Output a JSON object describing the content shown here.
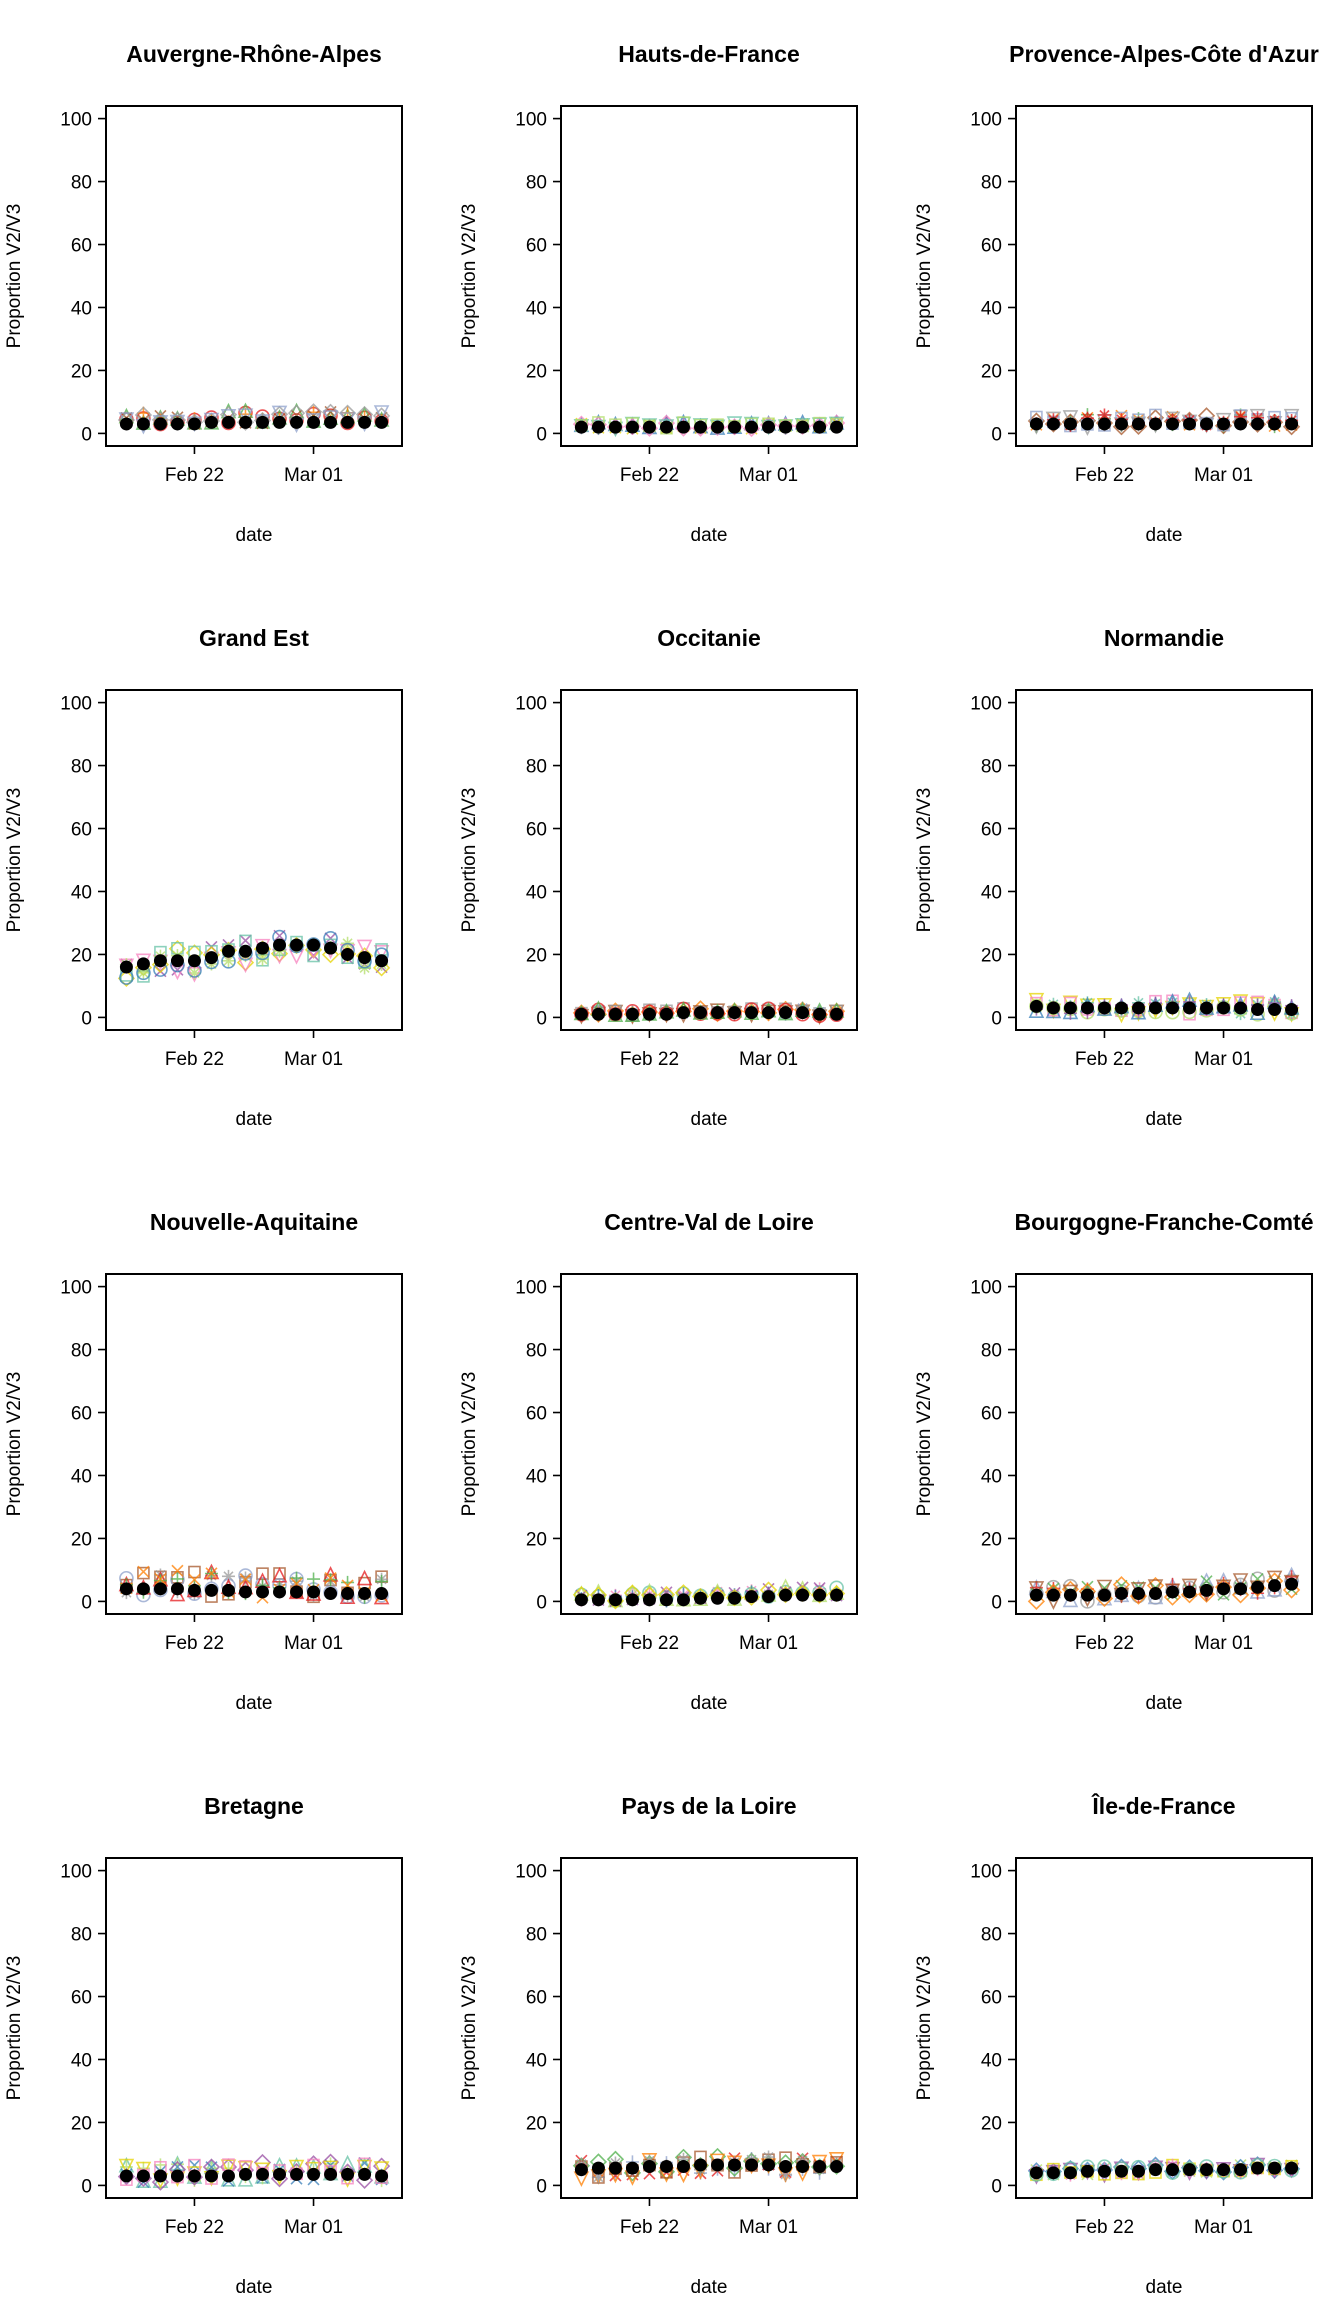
{
  "chart_data": [
    {
      "type": "scatter",
      "title": "Auvergne-Rhône-Alpes",
      "xlabel": "date",
      "ylabel": "Proportion V2/V3",
      "ylim": [
        0,
        100
      ],
      "yticks": [
        0,
        20,
        40,
        60,
        80,
        100
      ],
      "x_tick_labels": [
        "Feb 22",
        "Mar 01"
      ],
      "x": [
        "Feb 18",
        "Feb 19",
        "Feb 20",
        "Feb 21",
        "Feb 22",
        "Feb 23",
        "Feb 24",
        "Feb 25",
        "Feb 26",
        "Feb 27",
        "Feb 28",
        "Mar 01",
        "Mar 02",
        "Mar 03",
        "Mar 04",
        "Mar 05"
      ],
      "mean": [
        3,
        3,
        3,
        3,
        3,
        3.5,
        3.5,
        3.5,
        3.5,
        3.5,
        3.5,
        3.5,
        3.5,
        3.5,
        3.5,
        3.5
      ],
      "spread": [
        0.5,
        3.5
      ]
    },
    {
      "type": "scatter",
      "title": "Hauts-de-France",
      "xlabel": "date",
      "ylabel": "Proportion V2/V3",
      "ylim": [
        0,
        100
      ],
      "yticks": [
        0,
        20,
        40,
        60,
        80,
        100
      ],
      "x_tick_labels": [
        "Feb 22",
        "Mar 01"
      ],
      "x": [
        "Feb 18",
        "Feb 19",
        "Feb 20",
        "Feb 21",
        "Feb 22",
        "Feb 23",
        "Feb 24",
        "Feb 25",
        "Feb 26",
        "Feb 27",
        "Feb 28",
        "Mar 01",
        "Mar 02",
        "Mar 03",
        "Mar 04",
        "Mar 05"
      ],
      "mean": [
        2,
        2,
        2,
        2,
        2,
        2,
        2,
        2,
        2,
        2,
        2,
        2,
        2,
        2,
        2,
        2
      ],
      "spread": [
        0.5,
        1.5
      ]
    },
    {
      "type": "scatter",
      "title": "Provence-Alpes-Côte d'Azur",
      "xlabel": "date",
      "ylabel": "Proportion V2/V3",
      "ylim": [
        0,
        100
      ],
      "yticks": [
        0,
        20,
        40,
        60,
        80,
        100
      ],
      "x_tick_labels": [
        "Feb 22",
        "Mar 01"
      ],
      "x": [
        "Feb 18",
        "Feb 19",
        "Feb 20",
        "Feb 21",
        "Feb 22",
        "Feb 23",
        "Feb 24",
        "Feb 25",
        "Feb 26",
        "Feb 27",
        "Feb 28",
        "Mar 01",
        "Mar 02",
        "Mar 03",
        "Mar 04",
        "Mar 05"
      ],
      "mean": [
        3,
        3,
        3,
        3,
        3,
        3,
        3,
        3,
        3,
        3,
        3,
        3,
        3,
        3,
        3,
        3
      ],
      "spread": [
        1,
        3
      ]
    },
    {
      "type": "scatter",
      "title": "Grand Est",
      "xlabel": "date",
      "ylabel": "Proportion V2/V3",
      "ylim": [
        0,
        100
      ],
      "yticks": [
        0,
        20,
        40,
        60,
        80,
        100
      ],
      "x_tick_labels": [
        "Feb 22",
        "Mar 01"
      ],
      "x": [
        "Feb 18",
        "Feb 19",
        "Feb 20",
        "Feb 21",
        "Feb 22",
        "Feb 23",
        "Feb 24",
        "Feb 25",
        "Feb 26",
        "Feb 27",
        "Feb 28",
        "Mar 01",
        "Mar 02",
        "Mar 03",
        "Mar 04",
        "Mar 05"
      ],
      "mean": [
        16,
        17,
        18,
        18,
        18,
        19,
        21,
        21,
        22,
        23,
        23,
        23,
        22,
        20,
        19,
        18
      ],
      "spread": [
        4,
        4
      ]
    },
    {
      "type": "scatter",
      "title": "Occitanie",
      "xlabel": "date",
      "ylabel": "Proportion V2/V3",
      "ylim": [
        0,
        100
      ],
      "yticks": [
        0,
        20,
        40,
        60,
        80,
        100
      ],
      "x_tick_labels": [
        "Feb 22",
        "Mar 01"
      ],
      "x": [
        "Feb 18",
        "Feb 19",
        "Feb 20",
        "Feb 21",
        "Feb 22",
        "Feb 23",
        "Feb 24",
        "Feb 25",
        "Feb 26",
        "Feb 27",
        "Feb 28",
        "Mar 01",
        "Mar 02",
        "Mar 03",
        "Mar 04",
        "Mar 05"
      ],
      "mean": [
        1,
        1,
        1,
        1,
        1,
        1,
        1.5,
        1.5,
        1.5,
        1.5,
        1.5,
        1.5,
        1.5,
        1.5,
        1,
        1
      ],
      "spread": [
        0.5,
        1.5
      ]
    },
    {
      "type": "scatter",
      "title": "Normandie",
      "xlabel": "date",
      "ylabel": "Proportion V2/V3",
      "ylim": [
        0,
        100
      ],
      "yticks": [
        0,
        20,
        40,
        60,
        80,
        100
      ],
      "x_tick_labels": [
        "Feb 22",
        "Mar 01"
      ],
      "x": [
        "Feb 18",
        "Feb 19",
        "Feb 20",
        "Feb 21",
        "Feb 22",
        "Feb 23",
        "Feb 24",
        "Feb 25",
        "Feb 26",
        "Feb 27",
        "Feb 28",
        "Mar 01",
        "Mar 02",
        "Mar 03",
        "Mar 04",
        "Mar 05"
      ],
      "mean": [
        3.5,
        3,
        3,
        3,
        3,
        3,
        3,
        3,
        3,
        3,
        3,
        3,
        3,
        2.5,
        2.5,
        2.5
      ],
      "spread": [
        2,
        2.5
      ]
    },
    {
      "type": "scatter",
      "title": "Nouvelle-Aquitaine",
      "xlabel": "date",
      "ylabel": "Proportion V2/V3",
      "ylim": [
        0,
        100
      ],
      "yticks": [
        0,
        20,
        40,
        60,
        80,
        100
      ],
      "x_tick_labels": [
        "Feb 22",
        "Mar 01"
      ],
      "x": [
        "Feb 18",
        "Feb 19",
        "Feb 20",
        "Feb 21",
        "Feb 22",
        "Feb 23",
        "Feb 24",
        "Feb 25",
        "Feb 26",
        "Feb 27",
        "Feb 28",
        "Mar 01",
        "Mar 02",
        "Mar 03",
        "Mar 04",
        "Mar 05"
      ],
      "mean": [
        4,
        4,
        4,
        4,
        3.5,
        3.5,
        3.5,
        3,
        3,
        3,
        3,
        3,
        2.5,
        2.5,
        2.5,
        2.5
      ],
      "spread": [
        2,
        6
      ]
    },
    {
      "type": "scatter",
      "title": "Centre-Val de Loire",
      "xlabel": "date",
      "ylabel": "Proportion V2/V3",
      "ylim": [
        0,
        100
      ],
      "yticks": [
        0,
        20,
        40,
        60,
        80,
        100
      ],
      "x_tick_labels": [
        "Feb 22",
        "Mar 01"
      ],
      "x": [
        "Feb 18",
        "Feb 19",
        "Feb 20",
        "Feb 21",
        "Feb 22",
        "Feb 23",
        "Feb 24",
        "Feb 25",
        "Feb 26",
        "Feb 27",
        "Feb 28",
        "Mar 01",
        "Mar 02",
        "Mar 03",
        "Mar 04",
        "Mar 05"
      ],
      "mean": [
        0.5,
        0.5,
        0.5,
        0.5,
        0.5,
        0.5,
        0.5,
        1,
        1,
        1,
        1.5,
        1.5,
        2,
        2,
        2,
        2
      ],
      "spread": [
        0.5,
        2.5
      ]
    },
    {
      "type": "scatter",
      "title": "Bourgogne-Franche-Comté",
      "xlabel": "date",
      "ylabel": "Proportion V2/V3",
      "ylim": [
        0,
        100
      ],
      "yticks": [
        0,
        20,
        40,
        60,
        80,
        100
      ],
      "x_tick_labels": [
        "Feb 22",
        "Mar 01"
      ],
      "x": [
        "Feb 18",
        "Feb 19",
        "Feb 20",
        "Feb 21",
        "Feb 22",
        "Feb 23",
        "Feb 24",
        "Feb 25",
        "Feb 26",
        "Feb 27",
        "Feb 28",
        "Mar 01",
        "Mar 02",
        "Mar 03",
        "Mar 04",
        "Mar 05"
      ],
      "mean": [
        2,
        2,
        2,
        2,
        2,
        2.5,
        2.5,
        2.5,
        3,
        3,
        3.5,
        4,
        4,
        4.5,
        5,
        5.5
      ],
      "spread": [
        2,
        3
      ]
    },
    {
      "type": "scatter",
      "title": "Bretagne",
      "xlabel": "date",
      "ylabel": "Proportion V2/V3",
      "ylim": [
        0,
        100
      ],
      "yticks": [
        0,
        20,
        40,
        60,
        80,
        100
      ],
      "x_tick_labels": [
        "Feb 22",
        "Mar 01"
      ],
      "x": [
        "Feb 18",
        "Feb 19",
        "Feb 20",
        "Feb 21",
        "Feb 22",
        "Feb 23",
        "Feb 24",
        "Feb 25",
        "Feb 26",
        "Feb 27",
        "Feb 28",
        "Mar 01",
        "Mar 02",
        "Mar 03",
        "Mar 04",
        "Mar 05"
      ],
      "mean": [
        3,
        3,
        3,
        3,
        3,
        3,
        3,
        3.5,
        3.5,
        3.5,
        3.5,
        3.5,
        3.5,
        3.5,
        3.5,
        3
      ],
      "spread": [
        2,
        4
      ]
    },
    {
      "type": "scatter",
      "title": "Pays de la Loire",
      "xlabel": "date",
      "ylabel": "Proportion V2/V3",
      "ylim": [
        0,
        100
      ],
      "yticks": [
        0,
        20,
        40,
        60,
        80,
        100
      ],
      "x_tick_labels": [
        "Feb 22",
        "Mar 01"
      ],
      "x": [
        "Feb 18",
        "Feb 19",
        "Feb 20",
        "Feb 21",
        "Feb 22",
        "Feb 23",
        "Feb 24",
        "Feb 25",
        "Feb 26",
        "Feb 27",
        "Feb 28",
        "Mar 01",
        "Mar 02",
        "Mar 03",
        "Mar 04",
        "Mar 05"
      ],
      "mean": [
        5,
        5.5,
        5.5,
        5.5,
        6,
        6,
        6,
        6.5,
        6.5,
        6.5,
        6.5,
        6.5,
        6,
        6,
        6,
        6
      ],
      "spread": [
        3,
        3
      ]
    },
    {
      "type": "scatter",
      "title": "Île-de-France",
      "xlabel": "date",
      "ylabel": "Proportion V2/V3",
      "ylim": [
        0,
        100
      ],
      "yticks": [
        0,
        20,
        40,
        60,
        80,
        100
      ],
      "x_tick_labels": [
        "Feb 22",
        "Mar 01"
      ],
      "x": [
        "Feb 18",
        "Feb 19",
        "Feb 20",
        "Feb 21",
        "Feb 22",
        "Feb 23",
        "Feb 24",
        "Feb 25",
        "Feb 26",
        "Feb 27",
        "Feb 28",
        "Mar 01",
        "Mar 02",
        "Mar 03",
        "Mar 04",
        "Mar 05"
      ],
      "mean": [
        4,
        4,
        4,
        4.5,
        4.5,
        4.5,
        4.5,
        5,
        5,
        5,
        5,
        5,
        5,
        5.5,
        5.5,
        5.5
      ],
      "spread": [
        1,
        1.5
      ]
    }
  ],
  "series_colors": [
    "#e41a1c",
    "#377eb8",
    "#4daf4a",
    "#984ea3",
    "#ff7f00",
    "#e6d300",
    "#a65628",
    "#f781bf",
    "#999999",
    "#66c2a5",
    "#8da0cb",
    "#b3de69"
  ],
  "marker_shapes": [
    "circle",
    "triangle",
    "plus",
    "cross",
    "diamond",
    "inverted-triangle",
    "square",
    "asterisk"
  ],
  "mean_color": "#000000"
}
